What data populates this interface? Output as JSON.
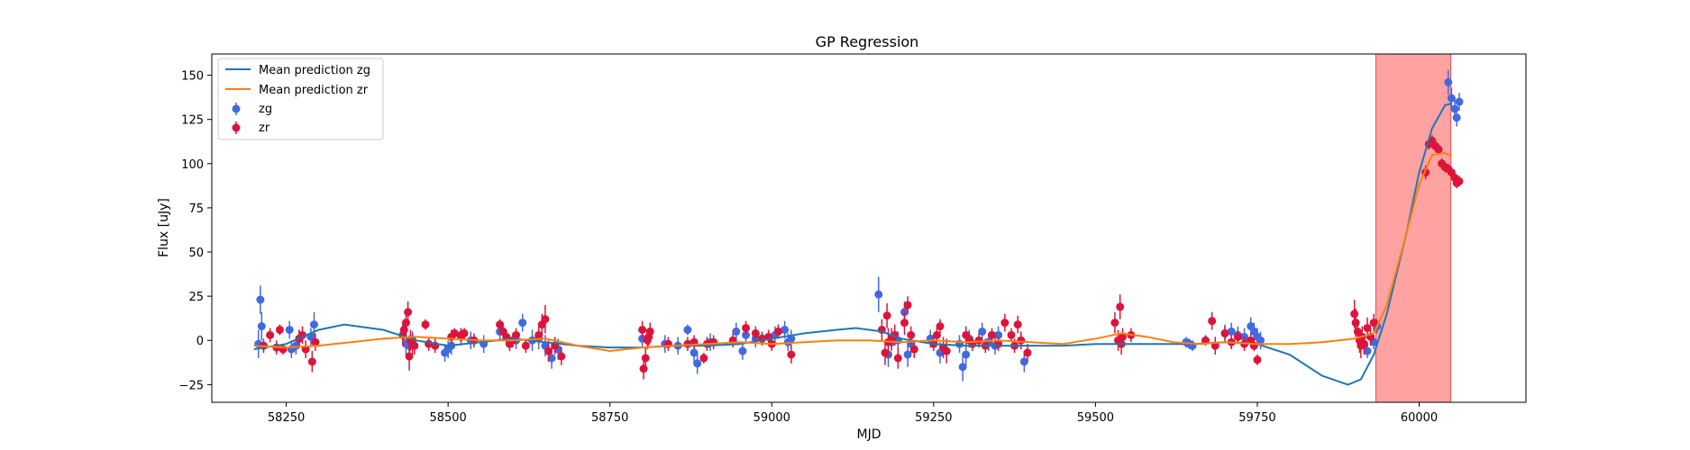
{
  "chart_data": {
    "type": "scatter",
    "title": "GP Regression",
    "xlabel": "MJD",
    "ylabel": "Flux [uJy]",
    "xlim": [
      58135,
      60165
    ],
    "ylim": [
      -35,
      162
    ],
    "xticks": [
      58250,
      58500,
      58750,
      59000,
      59250,
      59500,
      59750,
      60000
    ],
    "yticks": [
      -25,
      0,
      25,
      50,
      75,
      100,
      125,
      150
    ],
    "grid": false,
    "legend_position": "top-left",
    "shaded_region": {
      "x0": 59933,
      "x1": 60049,
      "color": "#ff6464"
    },
    "series": [
      {
        "name": "Mean prediction zg",
        "kind": "line",
        "color": "#1f77b4",
        "x": [
          58200,
          58250,
          58300,
          58340,
          58400,
          58450,
          58500,
          58550,
          58600,
          58650,
          58700,
          58750,
          58800,
          58850,
          58900,
          58950,
          59000,
          59050,
          59100,
          59130,
          59170,
          59200,
          59250,
          59300,
          59350,
          59400,
          59450,
          59500,
          59550,
          59600,
          59650,
          59700,
          59750,
          59800,
          59850,
          59890,
          59910,
          59930,
          59950,
          59980,
          60000,
          60020,
          60040,
          60050
        ],
        "y": [
          -5,
          -2,
          6,
          9,
          6,
          0,
          -3,
          -1,
          1,
          -1,
          -3,
          -4,
          -4,
          -3,
          -3,
          -2,
          1,
          4,
          6,
          7,
          5,
          1,
          -2,
          -3,
          -3,
          -3,
          -3,
          -2,
          -2,
          -2,
          -2,
          -1,
          -2,
          -8,
          -20,
          -25,
          -22,
          -8,
          15,
          60,
          95,
          120,
          133,
          134
        ]
      },
      {
        "name": "Mean prediction zr",
        "kind": "line",
        "color": "#ff7f0e",
        "x": [
          58200,
          58250,
          58300,
          58350,
          58400,
          58450,
          58500,
          58550,
          58600,
          58650,
          58700,
          58750,
          58800,
          58850,
          58900,
          58950,
          59000,
          59050,
          59100,
          59150,
          59200,
          59250,
          59300,
          59350,
          59400,
          59450,
          59500,
          59540,
          59580,
          59620,
          59660,
          59700,
          59750,
          59800,
          59850,
          59900,
          59930,
          59950,
          59980,
          60000,
          60020,
          60040,
          60050
        ],
        "y": [
          -3,
          -4,
          -3,
          -1,
          1,
          2,
          1,
          0,
          0,
          1,
          -3,
          -6,
          -4,
          -3,
          -2,
          -1,
          -2,
          -1,
          0,
          0,
          -1,
          0,
          -1,
          0,
          -1,
          -2,
          1,
          4,
          2,
          -1,
          -2,
          -1,
          -2,
          -2,
          -1,
          1,
          4,
          20,
          60,
          88,
          105,
          106,
          104
        ]
      },
      {
        "name": "zg",
        "kind": "errorbar",
        "color": "#4169e1",
        "x": [
          58207,
          58210,
          58212,
          58255,
          58258,
          58265,
          58270,
          58288,
          58293,
          58435,
          58440,
          58445,
          58495,
          58500,
          58505,
          58520,
          58535,
          58555,
          58580,
          58605,
          58615,
          58630,
          58640,
          58650,
          58660,
          58670,
          58800,
          58835,
          58855,
          58870,
          58880,
          58885,
          58905,
          58945,
          58955,
          58960,
          58975,
          59005,
          59020,
          59025,
          59030,
          59165,
          59180,
          59185,
          59195,
          59205,
          59210,
          59215,
          59245,
          59260,
          59290,
          59295,
          59300,
          59305,
          59325,
          59335,
          59345,
          59350,
          59385,
          59390,
          59640,
          59645,
          59650,
          59700,
          59710,
          59720,
          59730,
          59740,
          59745,
          59750,
          59755,
          59920,
          59930,
          59935,
          60045,
          60050,
          60055,
          60058,
          60062
        ],
        "y": [
          -2,
          23,
          8,
          6,
          -5,
          -3,
          1,
          2,
          9,
          -2,
          -3,
          0,
          -7,
          -5,
          -3,
          2,
          0,
          -2,
          5,
          0,
          10,
          0,
          1,
          -3,
          -10,
          -5,
          1,
          -2,
          -3,
          6,
          -7,
          -13,
          -1,
          5,
          -6,
          3,
          1,
          3,
          6,
          -1,
          1,
          26,
          -8,
          -1,
          0,
          16,
          -8,
          -2,
          1,
          -7,
          -2,
          -15,
          -8,
          1,
          5,
          -1,
          -3,
          3,
          0,
          -12,
          -1,
          -2,
          -3,
          4,
          5,
          3,
          2,
          8,
          5,
          2,
          0,
          -6,
          -1,
          8,
          146,
          137,
          131,
          126,
          135
        ],
        "err": [
          8,
          8,
          8,
          5,
          5,
          5,
          5,
          5,
          7,
          6,
          6,
          5,
          5,
          5,
          5,
          5,
          5,
          5,
          5,
          5,
          5,
          6,
          6,
          6,
          6,
          6,
          5,
          5,
          5,
          3,
          6,
          6,
          5,
          5,
          5,
          5,
          5,
          5,
          5,
          5,
          5,
          10,
          7,
          5,
          5,
          6,
          7,
          5,
          5,
          6,
          5,
          8,
          7,
          5,
          5,
          5,
          5,
          5,
          5,
          6,
          3,
          3,
          3,
          5,
          5,
          5,
          5,
          5,
          5,
          5,
          5,
          4,
          4,
          4,
          7,
          6,
          6,
          5,
          5
        ]
      },
      {
        "name": "zr",
        "kind": "errorbar",
        "color": "#dc143c",
        "x": [
          58215,
          58225,
          58235,
          58240,
          58245,
          58270,
          58275,
          58280,
          58290,
          58295,
          58430,
          58432,
          58435,
          58438,
          58440,
          58442,
          58445,
          58448,
          58465,
          58470,
          58480,
          58505,
          58510,
          58520,
          58525,
          58540,
          58580,
          58585,
          58590,
          58595,
          58600,
          58605,
          58620,
          58640,
          58645,
          58650,
          58655,
          58665,
          58675,
          58800,
          58802,
          58805,
          58808,
          58810,
          58812,
          58840,
          58870,
          58880,
          58895,
          58900,
          58910,
          58940,
          58960,
          58975,
          58985,
          58995,
          59000,
          59010,
          59030,
          59170,
          59175,
          59178,
          59180,
          59185,
          59190,
          59195,
          59205,
          59210,
          59215,
          59220,
          59250,
          59255,
          59260,
          59265,
          59270,
          59300,
          59305,
          59310,
          59320,
          59330,
          59340,
          59350,
          59360,
          59370,
          59375,
          59380,
          59385,
          59395,
          59530,
          59535,
          59538,
          59540,
          59542,
          59555,
          59670,
          59680,
          59685,
          59700,
          59710,
          59720,
          59730,
          59740,
          59745,
          59750,
          59900,
          59902,
          59905,
          59908,
          59910,
          59912,
          59915,
          59920,
          59925,
          59930,
          60010,
          60015,
          60020,
          60025,
          60030,
          60035,
          60040,
          60045,
          60050,
          60055,
          60058,
          60062
        ],
        "y": [
          -3,
          3,
          -4,
          6,
          -5,
          1,
          3,
          -5,
          -12,
          -1,
          3,
          6,
          10,
          16,
          -9,
          0,
          -2,
          -3,
          9,
          -2,
          -3,
          2,
          4,
          3,
          4,
          0,
          9,
          5,
          2,
          -2,
          0,
          3,
          -3,
          3,
          9,
          12,
          -6,
          -3,
          -9,
          6,
          -16,
          -10,
          0,
          2,
          5,
          -2,
          -2,
          -1,
          -10,
          -2,
          -1,
          0,
          7,
          4,
          1,
          2,
          -2,
          5,
          -8,
          6,
          -7,
          14,
          -1,
          1,
          3,
          -10,
          10,
          20,
          3,
          -5,
          -2,
          3,
          8,
          -4,
          -6,
          3,
          0,
          -2,
          0,
          -3,
          3,
          -2,
          10,
          3,
          -3,
          9,
          0,
          -7,
          10,
          0,
          19,
          -2,
          2,
          3,
          0,
          11,
          -3,
          4,
          -1,
          2,
          -2,
          0,
          -3,
          -11,
          15,
          10,
          5,
          0,
          -3,
          2,
          -2,
          7,
          2,
          10,
          95,
          111,
          113,
          110,
          108,
          100,
          98,
          97,
          95,
          92,
          89,
          90
        ],
        "err": [
          4,
          4,
          4,
          3,
          3,
          5,
          5,
          5,
          6,
          5,
          6,
          6,
          6,
          6,
          8,
          6,
          6,
          5,
          3,
          4,
          4,
          4,
          3,
          4,
          3,
          4,
          3,
          3,
          4,
          4,
          4,
          4,
          4,
          5,
          6,
          8,
          6,
          5,
          5,
          5,
          6,
          6,
          5,
          5,
          5,
          4,
          4,
          4,
          3,
          4,
          4,
          4,
          4,
          4,
          4,
          4,
          4,
          4,
          5,
          6,
          7,
          7,
          8,
          6,
          6,
          6,
          7,
          5,
          5,
          5,
          4,
          4,
          4,
          6,
          7,
          5,
          4,
          4,
          4,
          4,
          4,
          4,
          5,
          4,
          4,
          5,
          5,
          5,
          6,
          6,
          7,
          6,
          5,
          4,
          3,
          5,
          5,
          4,
          4,
          4,
          4,
          4,
          3,
          3,
          8,
          8,
          7,
          7,
          7,
          6,
          6,
          6,
          5,
          5,
          4,
          3,
          3,
          3,
          3,
          3,
          3,
          3,
          3,
          3,
          3,
          3
        ]
      }
    ]
  }
}
